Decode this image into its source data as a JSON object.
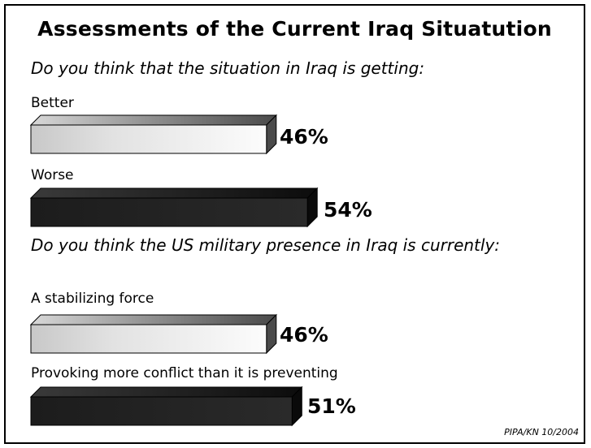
{
  "chart_data": {
    "type": "bar",
    "orientation": "horizontal",
    "title": "Assessments of the Current Iraq Situatution",
    "groups": [
      {
        "question": "Do you think that the situation in Iraq is getting:",
        "categories": [
          "Better",
          "Worse"
        ],
        "values": [
          46,
          54
        ],
        "value_labels": [
          "46%",
          "54%"
        ]
      },
      {
        "question": "Do you think the US military presence in Iraq is currently:",
        "categories": [
          "A stabilizing force",
          "Provoking more conflict than it is preventing"
        ],
        "values": [
          46,
          51
        ],
        "value_labels": [
          "46%",
          "51%"
        ]
      }
    ],
    "source": "PIPA/KN 10/2004",
    "grid": false,
    "colors": {
      "light_bar": "#e6e6e6",
      "dark_bar": "#1c1c1c"
    }
  }
}
